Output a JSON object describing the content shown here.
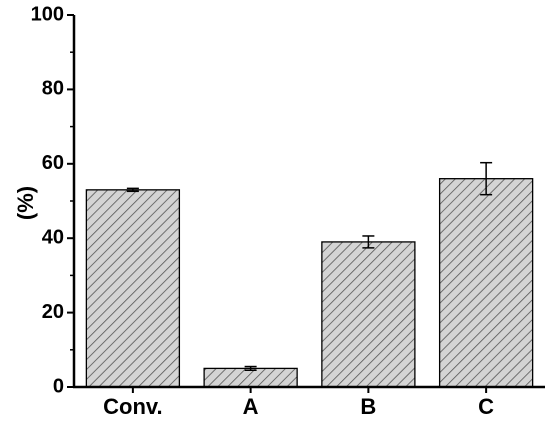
{
  "chart_data": {
    "type": "bar",
    "title": "",
    "xlabel": "",
    "ylabel": "(%)",
    "ylim": [
      0,
      100
    ],
    "yticks": [
      0,
      20,
      40,
      60,
      80,
      100
    ],
    "categories": [
      "Conv.",
      "A",
      "B",
      "C"
    ],
    "series": [
      {
        "values": [
          53,
          5,
          39,
          56
        ],
        "errors": [
          0.4,
          0.5,
          1.6,
          4.3
        ],
        "fill": "#d4d4d4",
        "hatch": "diagonal"
      }
    ],
    "grid": false,
    "legend": "none"
  }
}
